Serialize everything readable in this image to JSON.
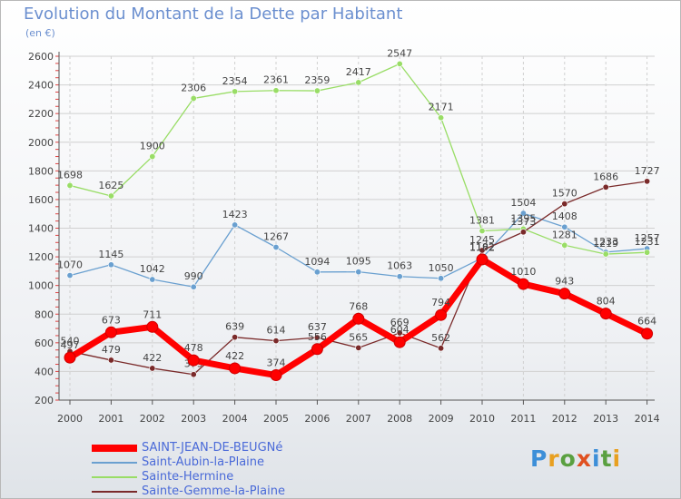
{
  "header": {
    "title": "Evolution du Montant de la Dette par Habitant",
    "unit": "(en €)"
  },
  "colors": {
    "saint_jean": "#ff0000",
    "saint_aubin": "#6aa0d0",
    "sainte_hermine": "#99dd66",
    "sainte_gemme": "#7a2a2a",
    "axis": "#555555",
    "grid": "#d0d0d0",
    "label_text": "#444444",
    "accent_text": "#6b8fcf"
  },
  "logo": {
    "text": "Proxiti"
  },
  "chart_data": {
    "type": "line",
    "title": "Evolution du Montant de la Dette par Habitant",
    "ylabel": "(en €)",
    "xlabel": "",
    "x": [
      "2000",
      "2001",
      "2002",
      "2003",
      "2004",
      "2005",
      "2006",
      "2007",
      "2008",
      "2009",
      "2010",
      "2011",
      "2012",
      "2013",
      "2014"
    ],
    "ylim": [
      200,
      2600
    ],
    "yticks": [
      200,
      400,
      600,
      800,
      1000,
      1200,
      1400,
      1600,
      1800,
      2000,
      2200,
      2400,
      2600
    ],
    "grid": true,
    "legend_position": "bottom-left",
    "series": [
      {
        "key": "saint_aubin",
        "name": "Saint-Aubin-la-Plaine",
        "values": [
          1070,
          1145,
          1042,
          990,
          1423,
          1267,
          1094,
          1095,
          1063,
          1050,
          1192,
          1504,
          1408,
          1233,
          1257
        ]
      },
      {
        "key": "sainte_hermine",
        "name": "Sainte-Hermine",
        "values": [
          1698,
          1625,
          1900,
          2306,
          2354,
          2361,
          2359,
          2417,
          2547,
          2171,
          1381,
          1395,
          1281,
          1219,
          1231
        ]
      },
      {
        "key": "sainte_gemme",
        "name": "Sainte-Gemme-la-Plaine",
        "values": [
          540,
          479,
          422,
          379,
          639,
          614,
          637,
          565,
          669,
          562,
          1245,
          1373,
          1570,
          1686,
          1727
        ]
      },
      {
        "key": "saint_jean",
        "name": "SAINT-JEAN-DE-BEUGNé",
        "values": [
          497,
          673,
          711,
          478,
          422,
          374,
          556,
          768,
          604,
          794,
          1182,
          1010,
          943,
          804,
          664
        ]
      }
    ]
  }
}
